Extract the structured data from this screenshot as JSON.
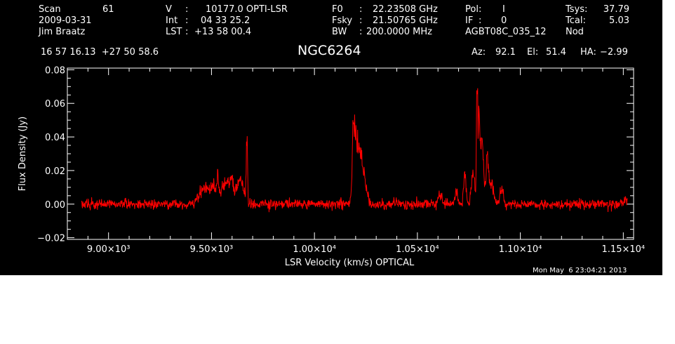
{
  "header": {
    "scan_label": "Scan",
    "scan_value": "61",
    "date": "2009-03-31",
    "observer": "Jim Braatz",
    "v_label": "V",
    "v_sep": ":",
    "v_value": "10177.0 OPTI-LSR",
    "int_label": "Int",
    "int_sep": ":",
    "int_value": "04 33 25.2",
    "lst_label": "LST",
    "lst_sep": ":",
    "lst_value": "+13 58 00.4",
    "f0_label": "F0",
    "f0_sep": ":",
    "f0_value": "22.23508 GHz",
    "fsky_label": "Fsky",
    "fsky_sep": ":",
    "fsky_value": "21.50765 GHz",
    "bw_label": "BW",
    "bw_sep": ":",
    "bw_value": "200.0000 MHz",
    "pol_label": "Pol:",
    "pol_value": "I",
    "if_label": "IF",
    "if_sep": ":",
    "if_value": "0",
    "project": "AGBT08C_035_12",
    "tsys_label": "Tsys:",
    "tsys_value": "37.79",
    "tcal_label": "Tcal:",
    "tcal_value": "5.03",
    "mode": "Nod",
    "coords": "16 57 16.13  +27 50 58.6",
    "source": "NGC6264",
    "az_label": "Az:",
    "az_value": "92.1",
    "el_label": "El:",
    "el_value": "51.4",
    "ha_label": "HA:",
    "ha_value": "−2.99"
  },
  "timestamp": "Mon May  6 23:04:21 2013",
  "colors": {
    "background": "#000000",
    "axes": "#ffffff",
    "spectrum": "#ff0000"
  },
  "chart_data": {
    "type": "line",
    "title": "NGC6264",
    "xlabel": "LSR Velocity (km/s) OPTICAL",
    "ylabel": "Flux Density (Jy)",
    "xlim": [
      8800,
      11550
    ],
    "ylim": [
      -0.021,
      0.081
    ],
    "x_ticks": [
      9000,
      9500,
      10000,
      10500,
      11000,
      11500
    ],
    "x_tick_labels": [
      "9.00×10³",
      "9.50×10³",
      "1.00×10⁴",
      "1.05×10⁴",
      "1.10×10⁴",
      "1.15×10⁴"
    ],
    "y_ticks": [
      -0.02,
      0.0,
      0.02,
      0.04,
      0.06,
      0.08
    ],
    "y_tick_labels": [
      "−0.02",
      "0.00",
      "0.02",
      "0.04",
      "0.06",
      "0.08"
    ],
    "grid": false,
    "series": [
      {
        "color": "#ff0000",
        "x_range": [
          8870,
          11520
        ],
        "baseline": 0.0,
        "noise_rms": 0.0015,
        "features": [
          {
            "x": 9450,
            "y": 0.007,
            "w": 20
          },
          {
            "x": 9480,
            "y": 0.007,
            "w": 15
          },
          {
            "x": 9510,
            "y": 0.01,
            "w": 10
          },
          {
            "x": 9530,
            "y": 0.015,
            "w": 5
          },
          {
            "x": 9555,
            "y": 0.01,
            "w": 12
          },
          {
            "x": 9580,
            "y": 0.011,
            "w": 10
          },
          {
            "x": 9600,
            "y": 0.013,
            "w": 8
          },
          {
            "x": 9630,
            "y": 0.012,
            "w": 12
          },
          {
            "x": 9650,
            "y": 0.01,
            "w": 10
          },
          {
            "x": 9672,
            "y": 0.04,
            "w": 3
          },
          {
            "x": 10190,
            "y": 0.042,
            "w": 6
          },
          {
            "x": 10205,
            "y": 0.032,
            "w": 10
          },
          {
            "x": 10225,
            "y": 0.023,
            "w": 10
          },
          {
            "x": 10245,
            "y": 0.012,
            "w": 12
          },
          {
            "x": 10610,
            "y": 0.006,
            "w": 8
          },
          {
            "x": 10690,
            "y": 0.008,
            "w": 6
          },
          {
            "x": 10730,
            "y": 0.016,
            "w": 6
          },
          {
            "x": 10770,
            "y": 0.019,
            "w": 8
          },
          {
            "x": 10790,
            "y": 0.066,
            "w": 3
          },
          {
            "x": 10800,
            "y": 0.046,
            "w": 5
          },
          {
            "x": 10815,
            "y": 0.032,
            "w": 8
          },
          {
            "x": 10840,
            "y": 0.028,
            "w": 6
          },
          {
            "x": 10860,
            "y": 0.012,
            "w": 10
          },
          {
            "x": 10910,
            "y": 0.01,
            "w": 8
          },
          {
            "x": 11510,
            "y": 0.003,
            "w": 5
          }
        ]
      }
    ]
  }
}
